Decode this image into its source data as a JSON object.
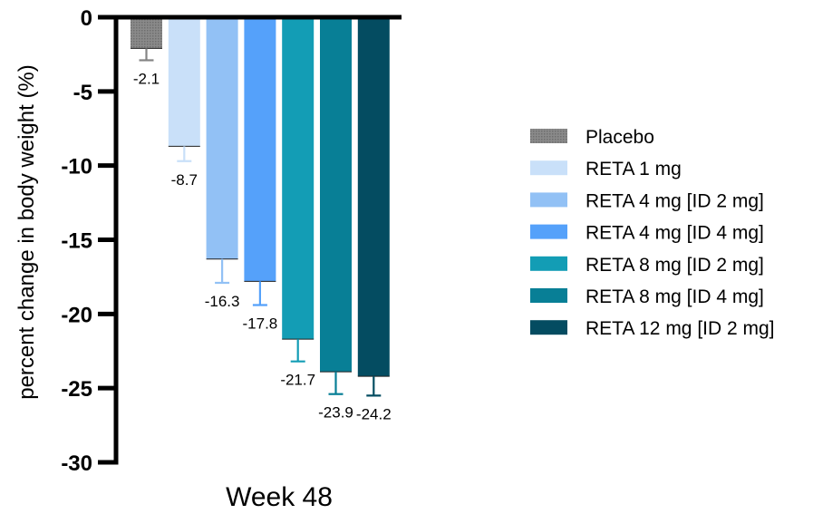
{
  "chart_data": {
    "type": "bar",
    "ylabel": "percent change in body weight (%)",
    "categories": [
      "Week 48"
    ],
    "ylim": [
      -30,
      0
    ],
    "yticks": [
      0,
      -5,
      -10,
      -15,
      -20,
      -25,
      -30
    ],
    "ytick_labels": [
      "0",
      "-5",
      "-10",
      "-15",
      "-20",
      "-25",
      "-30"
    ],
    "grid": false,
    "legend_position": "right",
    "series": [
      {
        "name": "Placebo",
        "values": [
          -2.1
        ],
        "error": [
          0.8
        ],
        "label": "-2.1",
        "color": "#848484",
        "error_color": "#848484",
        "pattern": true
      },
      {
        "name": "RETA 1 mg",
        "values": [
          -8.7
        ],
        "error": [
          1.0
        ],
        "label": "-8.7",
        "color": "#c9e0f9",
        "error_color": "#c9e0f9"
      },
      {
        "name": "RETA 4 mg [ID 2 mg]",
        "values": [
          -16.3
        ],
        "error": [
          1.6
        ],
        "label": "-16.3",
        "color": "#92c1f5",
        "error_color": "#92c1f5"
      },
      {
        "name": "RETA 4 mg [ID 4 mg]",
        "values": [
          -17.8
        ],
        "error": [
          1.6
        ],
        "label": "-17.8",
        "color": "#55a1fa",
        "error_color": "#55a1fa"
      },
      {
        "name": "RETA 8 mg [ID 2 mg]",
        "values": [
          -21.7
        ],
        "error": [
          1.5
        ],
        "label": "-21.7",
        "color": "#139db5",
        "error_color": "#139db5"
      },
      {
        "name": "RETA 8 mg [ID 4 mg]",
        "values": [
          -23.9
        ],
        "error": [
          1.5
        ],
        "label": "-23.9",
        "color": "#087f96",
        "error_color": "#087f96"
      },
      {
        "name": "RETA 12 mg [ID 2 mg]",
        "values": [
          -24.2
        ],
        "error": [
          1.3
        ],
        "label": "-24.2",
        "color": "#044c61",
        "error_color": "#044c61"
      }
    ]
  }
}
